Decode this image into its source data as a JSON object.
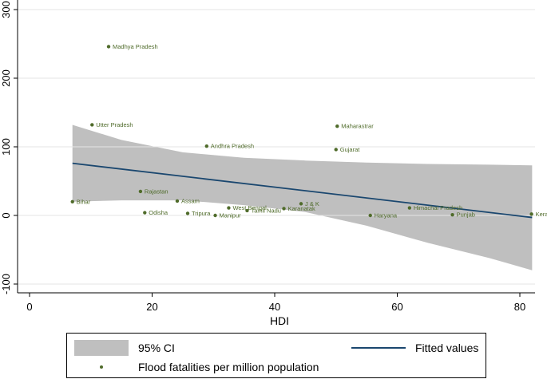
{
  "chart_data": {
    "type": "scatter",
    "title": "",
    "xlabel": "HDI",
    "ylabel": "",
    "xlim": [
      -2,
      84
    ],
    "ylim": [
      -110,
      315
    ],
    "x_ticks": [
      0,
      20,
      40,
      60,
      80
    ],
    "y_ticks": [
      -100,
      0,
      100,
      200,
      300
    ],
    "grid": "horizontal",
    "points": [
      {
        "label": "Madhya Pradesh",
        "x": 12.9,
        "y": 246
      },
      {
        "label": "Utter Pradesh",
        "x": 10.2,
        "y": 132
      },
      {
        "label": "Maharastrar",
        "x": 50.2,
        "y": 130
      },
      {
        "label": "Andhra Pradesh",
        "x": 28.9,
        "y": 101
      },
      {
        "label": "Gujarat",
        "x": 50.0,
        "y": 96
      },
      {
        "label": "Rajastan",
        "x": 18.1,
        "y": 35
      },
      {
        "label": "Bihar",
        "x": 7.0,
        "y": 20
      },
      {
        "label": "Assam",
        "x": 24.1,
        "y": 21
      },
      {
        "label": "J & K",
        "x": 44.3,
        "y": 17
      },
      {
        "label": "Himachal Pradesh",
        "x": 62.0,
        "y": 11
      },
      {
        "label": "West Bengal",
        "x": 32.5,
        "y": 11
      },
      {
        "label": "Karanatak",
        "x": 41.5,
        "y": 10
      },
      {
        "label": "Tamil Nadu",
        "x": 35.5,
        "y": 7
      },
      {
        "label": "Odisha",
        "x": 18.8,
        "y": 4
      },
      {
        "label": "Tripura",
        "x": 25.8,
        "y": 3
      },
      {
        "label": "Manipur",
        "x": 30.3,
        "y": 0
      },
      {
        "label": "Haryana",
        "x": 55.6,
        "y": 0
      },
      {
        "label": "Punjab",
        "x": 69.0,
        "y": 1
      },
      {
        "label": "Kerala",
        "x": 81.9,
        "y": 2
      }
    ],
    "fitted_line": {
      "name": "Fitted values",
      "x": [
        7,
        82
      ],
      "y": [
        76,
        -3
      ]
    },
    "ci_band": {
      "name": "95% CI",
      "x": [
        7,
        15,
        25,
        35,
        45,
        55,
        65,
        75,
        82
      ],
      "upper": [
        132,
        110,
        92,
        84,
        80,
        77,
        75,
        74,
        73
      ],
      "lower": [
        20,
        22,
        22,
        15,
        5,
        -15,
        -40,
        -62,
        -80
      ]
    },
    "series_color": "#4f6b2a",
    "line_color": "#1a476f",
    "ci_color": "#bfbfbf"
  },
  "legend": {
    "ci_label": "95% CI",
    "fit_label": "Fitted values",
    "points_label": "Flood fatalities per million population",
    "placement": "bottom"
  }
}
